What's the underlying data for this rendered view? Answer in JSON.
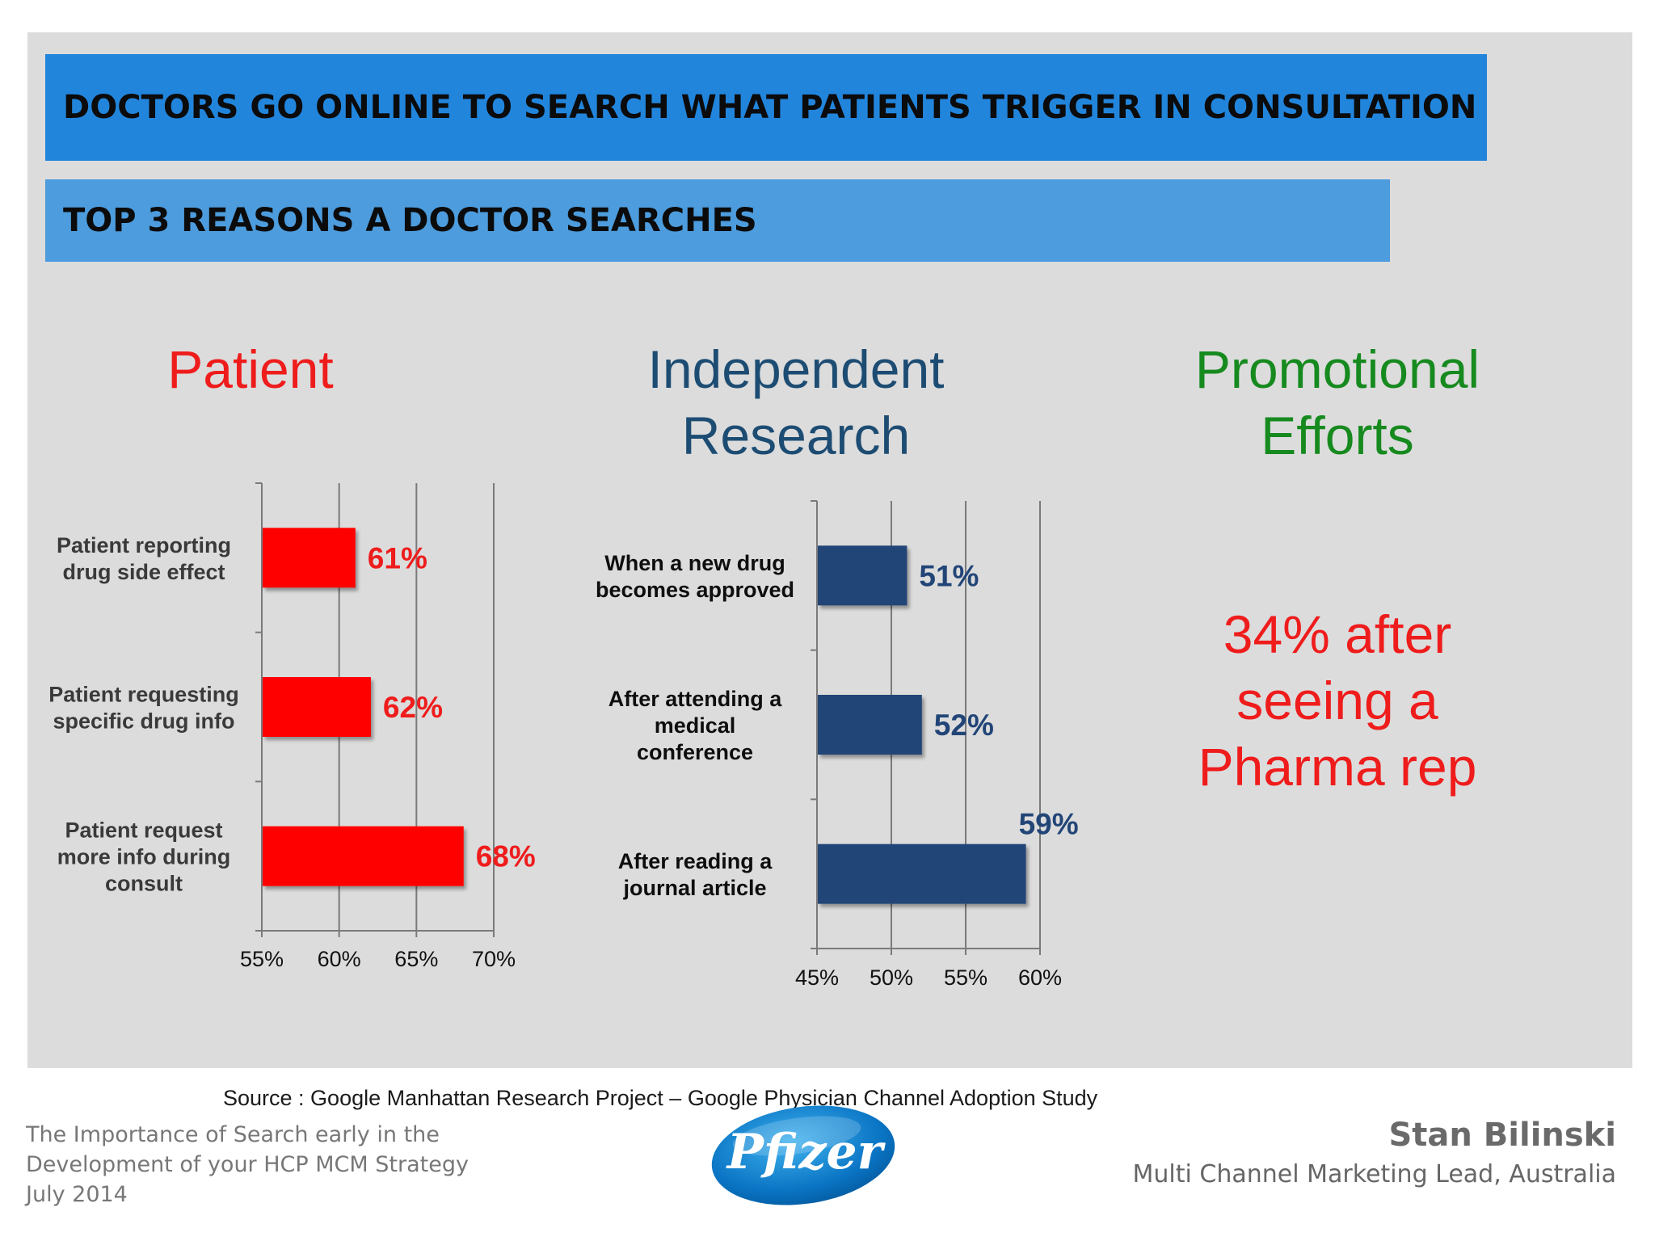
{
  "banner": {
    "main": "DOCTORS GO ONLINE TO SEARCH WHAT PATIENTS TRIGGER IN CONSULTATION",
    "sub": "TOP 3 REASONS A DOCTOR SEARCHES"
  },
  "headings": {
    "patient": "Patient",
    "research_line1": "Independent",
    "research_line2": "Research",
    "promo_line1": "Promotional",
    "promo_line2": "Efforts"
  },
  "promo": {
    "line1": "34% after",
    "line2": "seeing a",
    "line3": "Pharma rep"
  },
  "colors": {
    "patient": "#ff0000",
    "research": "#224577",
    "promo": "#168a1e",
    "banner_main": "#2285dc",
    "banner_sub": "#4d9cdd"
  },
  "chart_data": [
    {
      "type": "bar",
      "orientation": "horizontal",
      "title": "Patient",
      "categories": [
        [
          "Patient reporting",
          "drug side effect"
        ],
        [
          "Patient requesting",
          "specific drug info"
        ],
        [
          "Patient request",
          "more info during",
          "consult"
        ]
      ],
      "values": [
        61,
        62,
        68
      ],
      "data_labels": [
        "61%",
        "62%",
        "68%"
      ],
      "xlim": [
        55,
        70
      ],
      "ticks": [
        55,
        60,
        65,
        70
      ],
      "tick_labels": [
        "55%",
        "60%",
        "65%",
        "70%"
      ],
      "grid": true
    },
    {
      "type": "bar",
      "orientation": "horizontal",
      "title": "Independent Research",
      "categories": [
        [
          "When a new drug",
          "becomes approved"
        ],
        [
          "After attending a",
          "medical",
          "conference"
        ],
        [
          "After reading a",
          "journal article"
        ]
      ],
      "values": [
        51,
        52,
        59
      ],
      "data_labels": [
        "51%",
        "52%",
        "59%"
      ],
      "xlim": [
        45,
        60
      ],
      "ticks": [
        45,
        50,
        55,
        60
      ],
      "tick_labels": [
        "45%",
        "50%",
        "55%",
        "60%"
      ],
      "grid": true
    }
  ],
  "source": "Source : Google Manhattan Research Project – Google Physician Channel Adoption Study",
  "footer": {
    "line1": "The Importance of Search early in the",
    "line2": "Development of your HCP MCM Strategy",
    "line3": "July 2014"
  },
  "author": {
    "name": "Stan Bilinski",
    "role": "Multi Channel Marketing Lead, Australia"
  },
  "logo": {
    "text": "Pfizer"
  }
}
